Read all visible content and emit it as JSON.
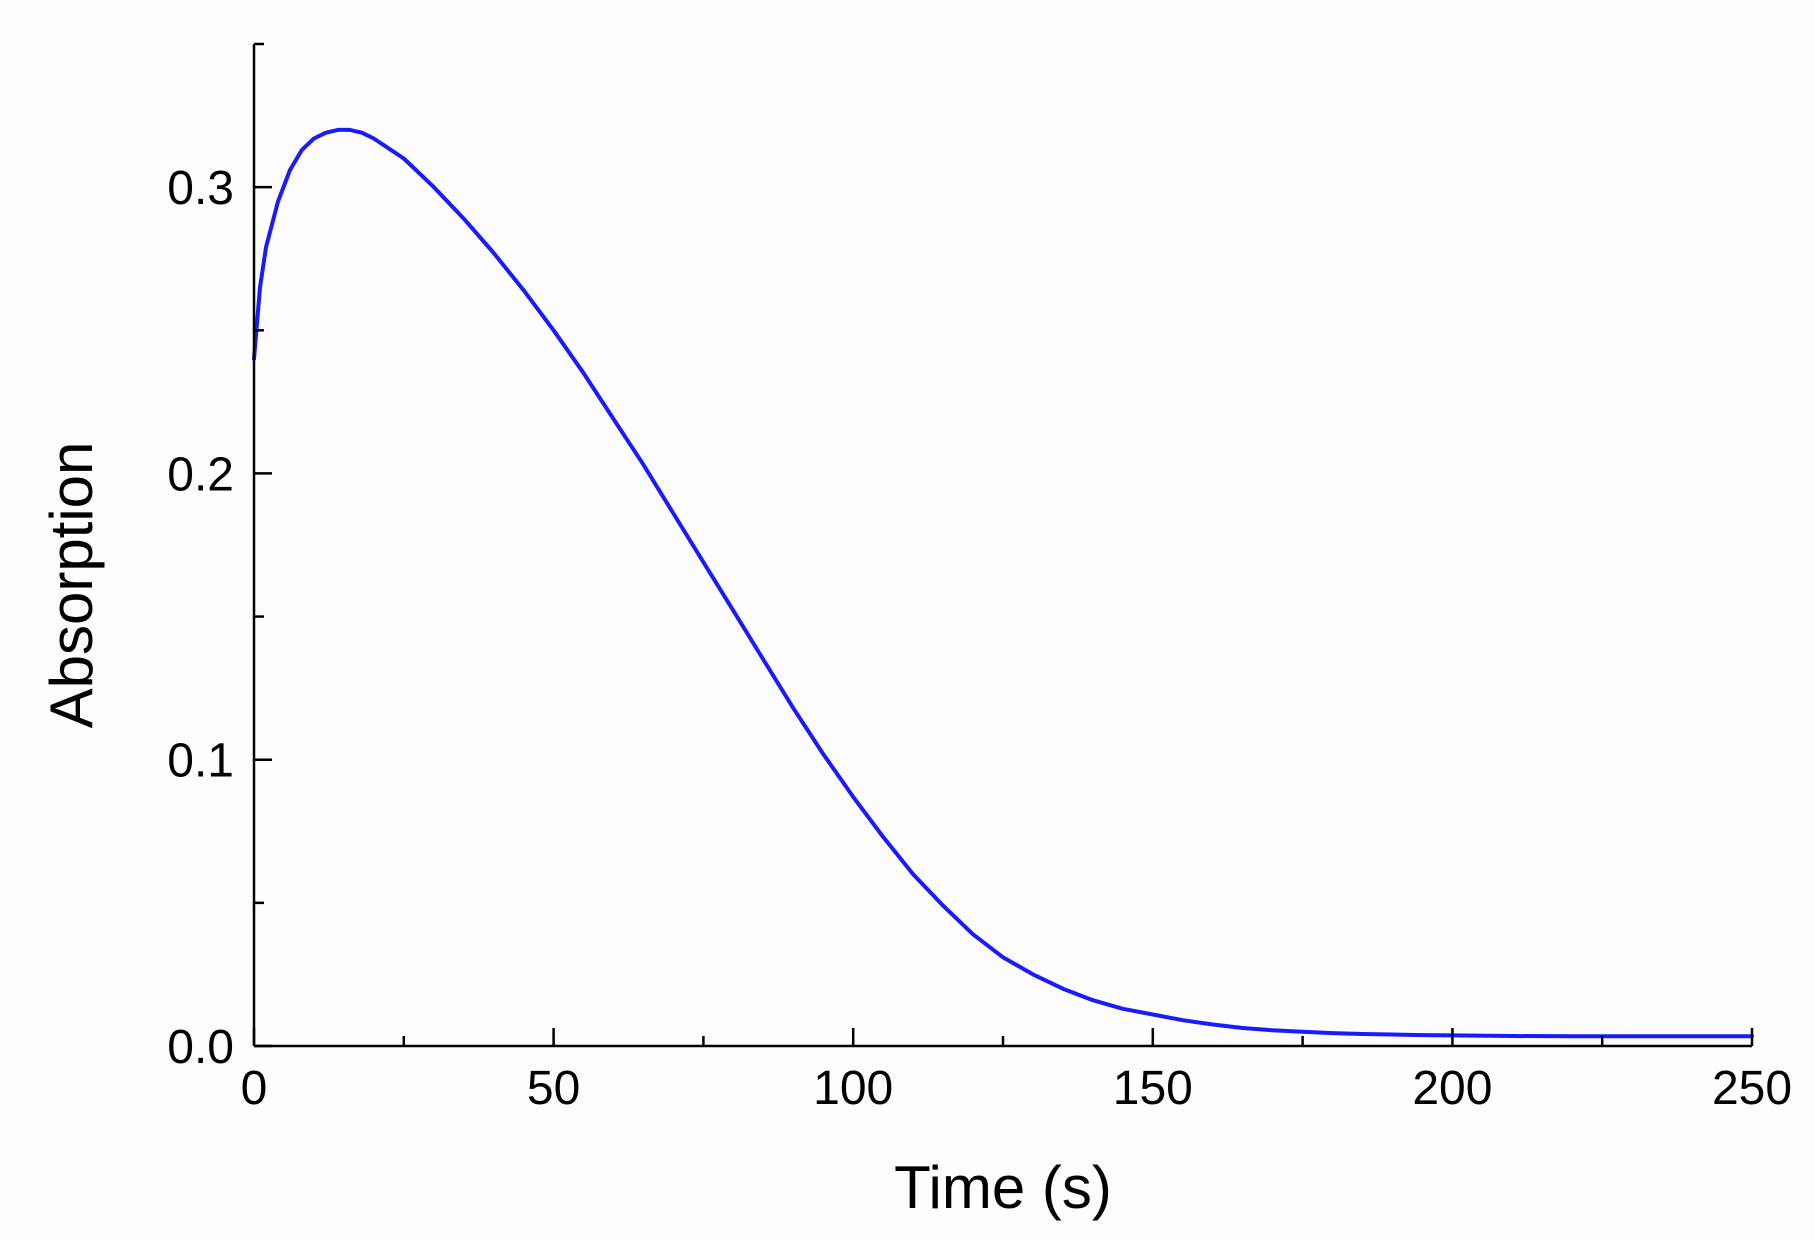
{
  "chart_data": {
    "type": "line",
    "title": "",
    "xlabel": "Time (s)",
    "ylabel": "Absorption",
    "xlim": [
      0,
      250
    ],
    "ylim": [
      0,
      0.35
    ],
    "x_ticks": [
      0,
      50,
      100,
      150,
      200,
      250
    ],
    "x_tick_labels": [
      "0",
      "50",
      "100",
      "150",
      "200",
      "250"
    ],
    "x_minor_ticks": [
      25,
      75,
      125,
      175,
      225
    ],
    "y_ticks": [
      0,
      0.1,
      0.2,
      0.3
    ],
    "y_tick_labels": [
      "0.0",
      "0.1",
      "0.2",
      "0.3"
    ],
    "y_minor_ticks": [
      0.05,
      0.15,
      0.25,
      0.35
    ],
    "grid": false,
    "legend": "none",
    "series": [
      {
        "color": "#1a1aff",
        "x": [
          0,
          1,
          2,
          4,
          6,
          8,
          10,
          12,
          14,
          16,
          18,
          20,
          25,
          30,
          35,
          40,
          45,
          50,
          55,
          60,
          65,
          70,
          75,
          80,
          85,
          90,
          95,
          100,
          105,
          110,
          115,
          120,
          125,
          130,
          135,
          140,
          145,
          150,
          155,
          160,
          165,
          170,
          175,
          180,
          185,
          190,
          195,
          200,
          210,
          220,
          230,
          240,
          250
        ],
        "y": [
          0.24,
          0.265,
          0.279,
          0.295,
          0.306,
          0.313,
          0.317,
          0.319,
          0.32,
          0.32,
          0.319,
          0.317,
          0.31,
          0.3,
          0.289,
          0.277,
          0.264,
          0.25,
          0.235,
          0.219,
          0.203,
          0.186,
          0.169,
          0.152,
          0.135,
          0.118,
          0.102,
          0.087,
          0.073,
          0.06,
          0.049,
          0.039,
          0.031,
          0.025,
          0.02,
          0.016,
          0.013,
          0.011,
          0.009,
          0.0075,
          0.0063,
          0.0055,
          0.005,
          0.0045,
          0.0042,
          0.004,
          0.0038,
          0.0037,
          0.0035,
          0.0034,
          0.0034,
          0.0034,
          0.0034
        ]
      }
    ]
  }
}
